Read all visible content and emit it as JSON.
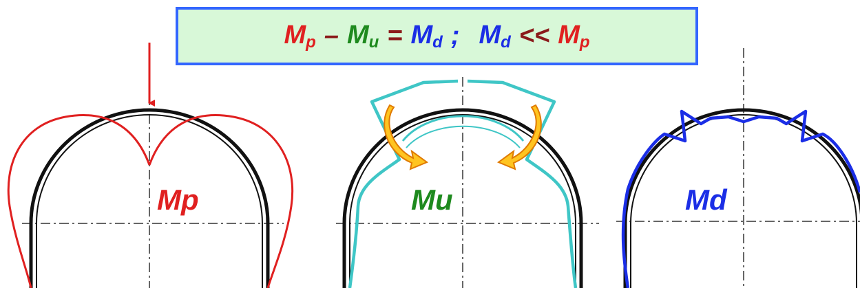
{
  "formula": {
    "mp_letter": "M",
    "mp_sub": "p",
    "minus": "–",
    "mu_letter": "M",
    "mu_sub": "u",
    "equals": "=",
    "md_letter": "M",
    "md_sub": "d",
    "semicolon": ";",
    "md2_letter": "M",
    "md2_sub": "d",
    "much_less": "<<",
    "mp2_letter": "M",
    "mp2_sub": "p"
  },
  "labels": {
    "left": "Mp",
    "middle": "Mu",
    "right": "Md"
  },
  "colors": {
    "mp": "#e02020",
    "mu": "#3fc6c6",
    "md": "#1b2ee6",
    "mu_label": "#1e8a1e",
    "arch": "#111111",
    "arrow_fill": "#ffc420",
    "formula_border": "#3366ff",
    "formula_bg": "#d8f8d8"
  }
}
